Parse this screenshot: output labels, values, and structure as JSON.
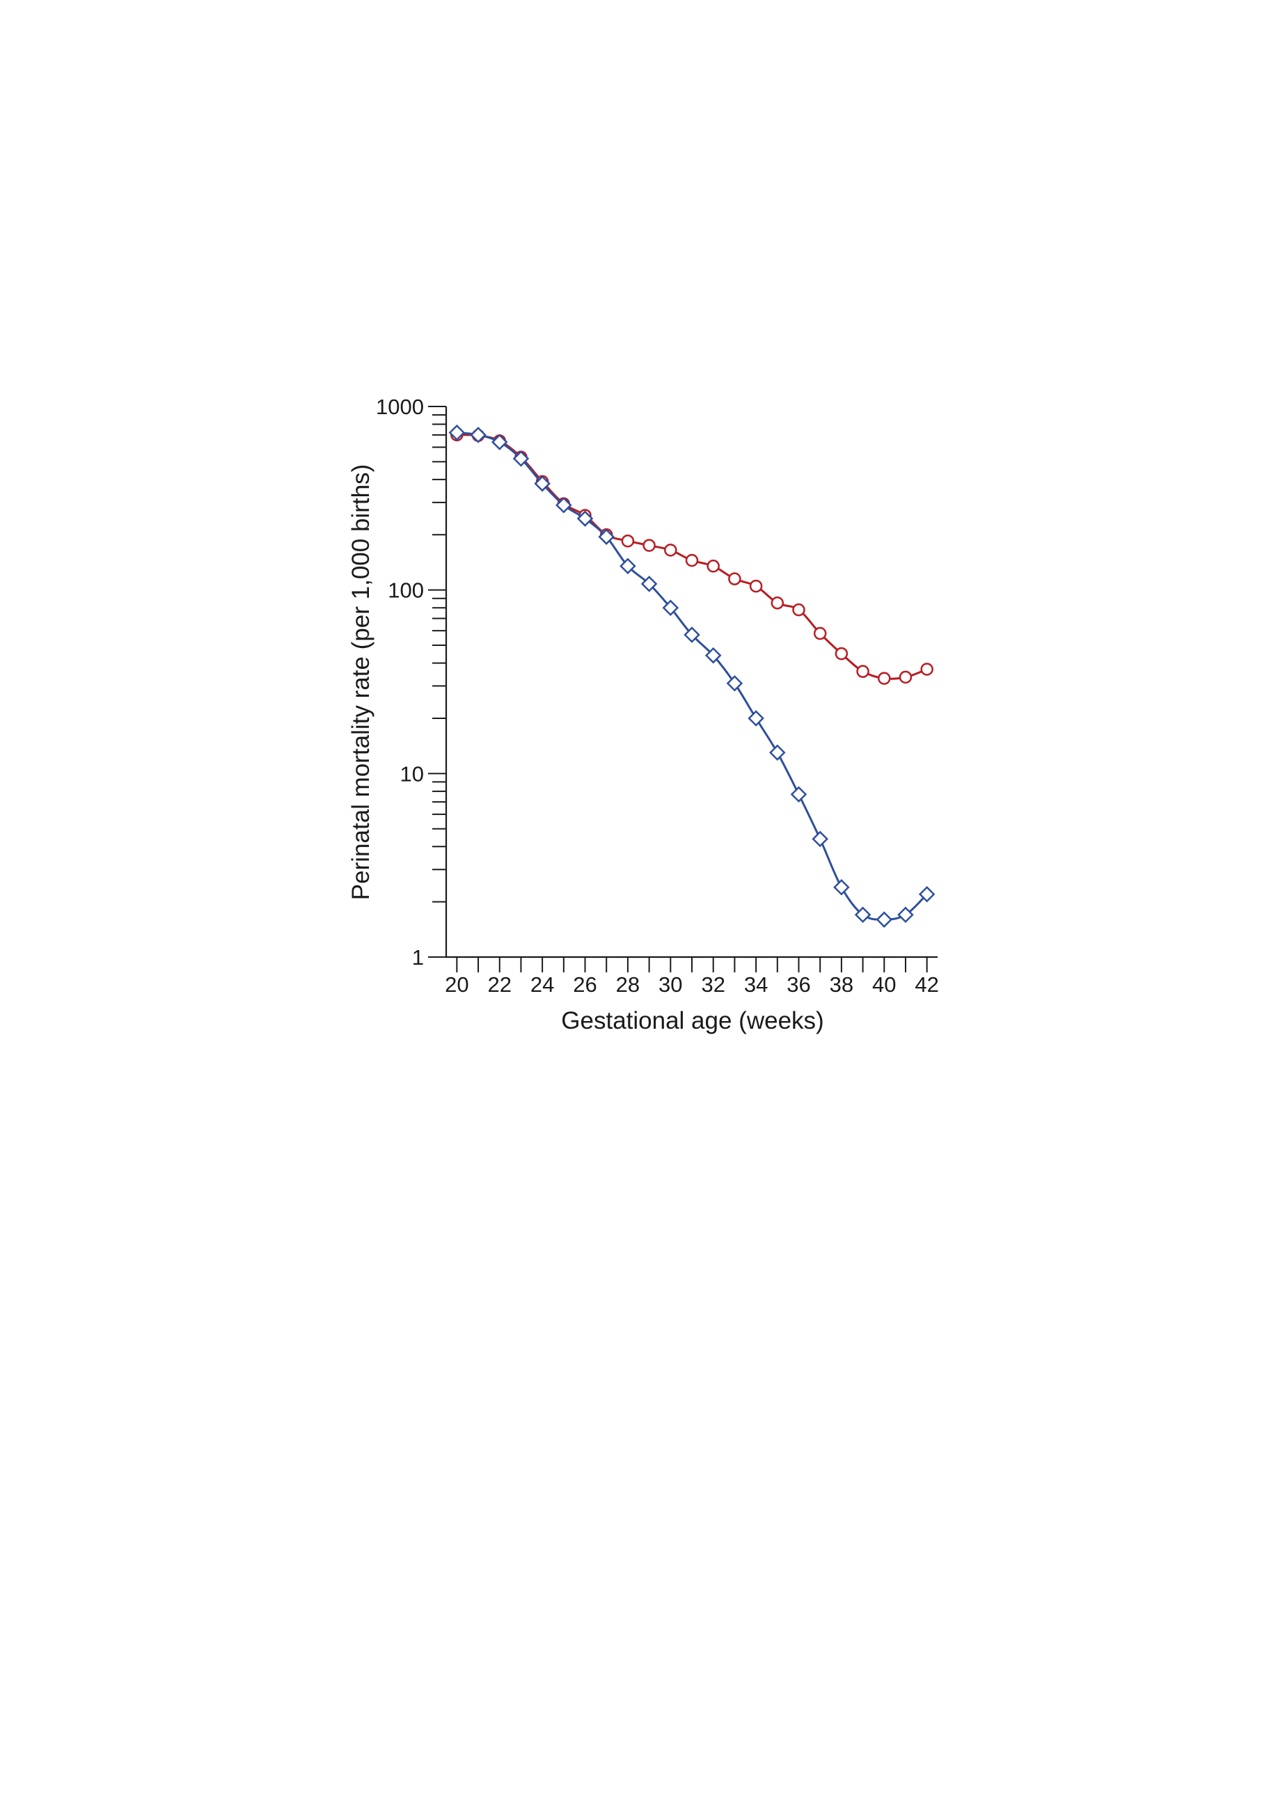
{
  "chart_data": {
    "type": "line",
    "title": "",
    "xlabel": "Gestational age (weeks)",
    "ylabel": "Perinatal mortality rate (per 1,000 births)",
    "xlim": [
      19.5,
      42.5
    ],
    "ylim": [
      1,
      1000
    ],
    "yscale": "log",
    "x_ticks": [
      20,
      22,
      24,
      26,
      28,
      30,
      32,
      34,
      36,
      38,
      40,
      42
    ],
    "x_tick_labels": [
      "20",
      "22",
      "24",
      "26",
      "28",
      "30",
      "32",
      "34",
      "36",
      "38",
      "40",
      "42"
    ],
    "y_ticks": [
      1,
      10,
      100,
      1000
    ],
    "y_tick_labels": [
      "1",
      "10",
      "100",
      "1000"
    ],
    "grid": false,
    "legend": "none",
    "x": [
      20,
      21,
      22,
      23,
      24,
      25,
      26,
      27,
      28,
      29,
      30,
      31,
      32,
      33,
      34,
      35,
      36,
      37,
      38,
      39,
      40,
      41,
      42
    ],
    "series": [
      {
        "marker": "circle",
        "color": "#b81c22",
        "values": [
          700,
          695,
          650,
          530,
          390,
          295,
          255,
          200,
          185,
          175,
          165,
          145,
          135,
          115,
          105,
          85,
          78,
          58,
          45,
          36,
          33,
          33.5,
          37
        ]
      },
      {
        "marker": "diamond",
        "color": "#2e4f9e",
        "values": [
          720,
          700,
          640,
          520,
          380,
          290,
          245,
          195,
          135,
          108,
          80,
          57,
          44,
          31,
          20,
          13,
          7.7,
          4.4,
          2.4,
          1.7,
          1.6,
          1.7,
          2.2
        ]
      }
    ]
  }
}
